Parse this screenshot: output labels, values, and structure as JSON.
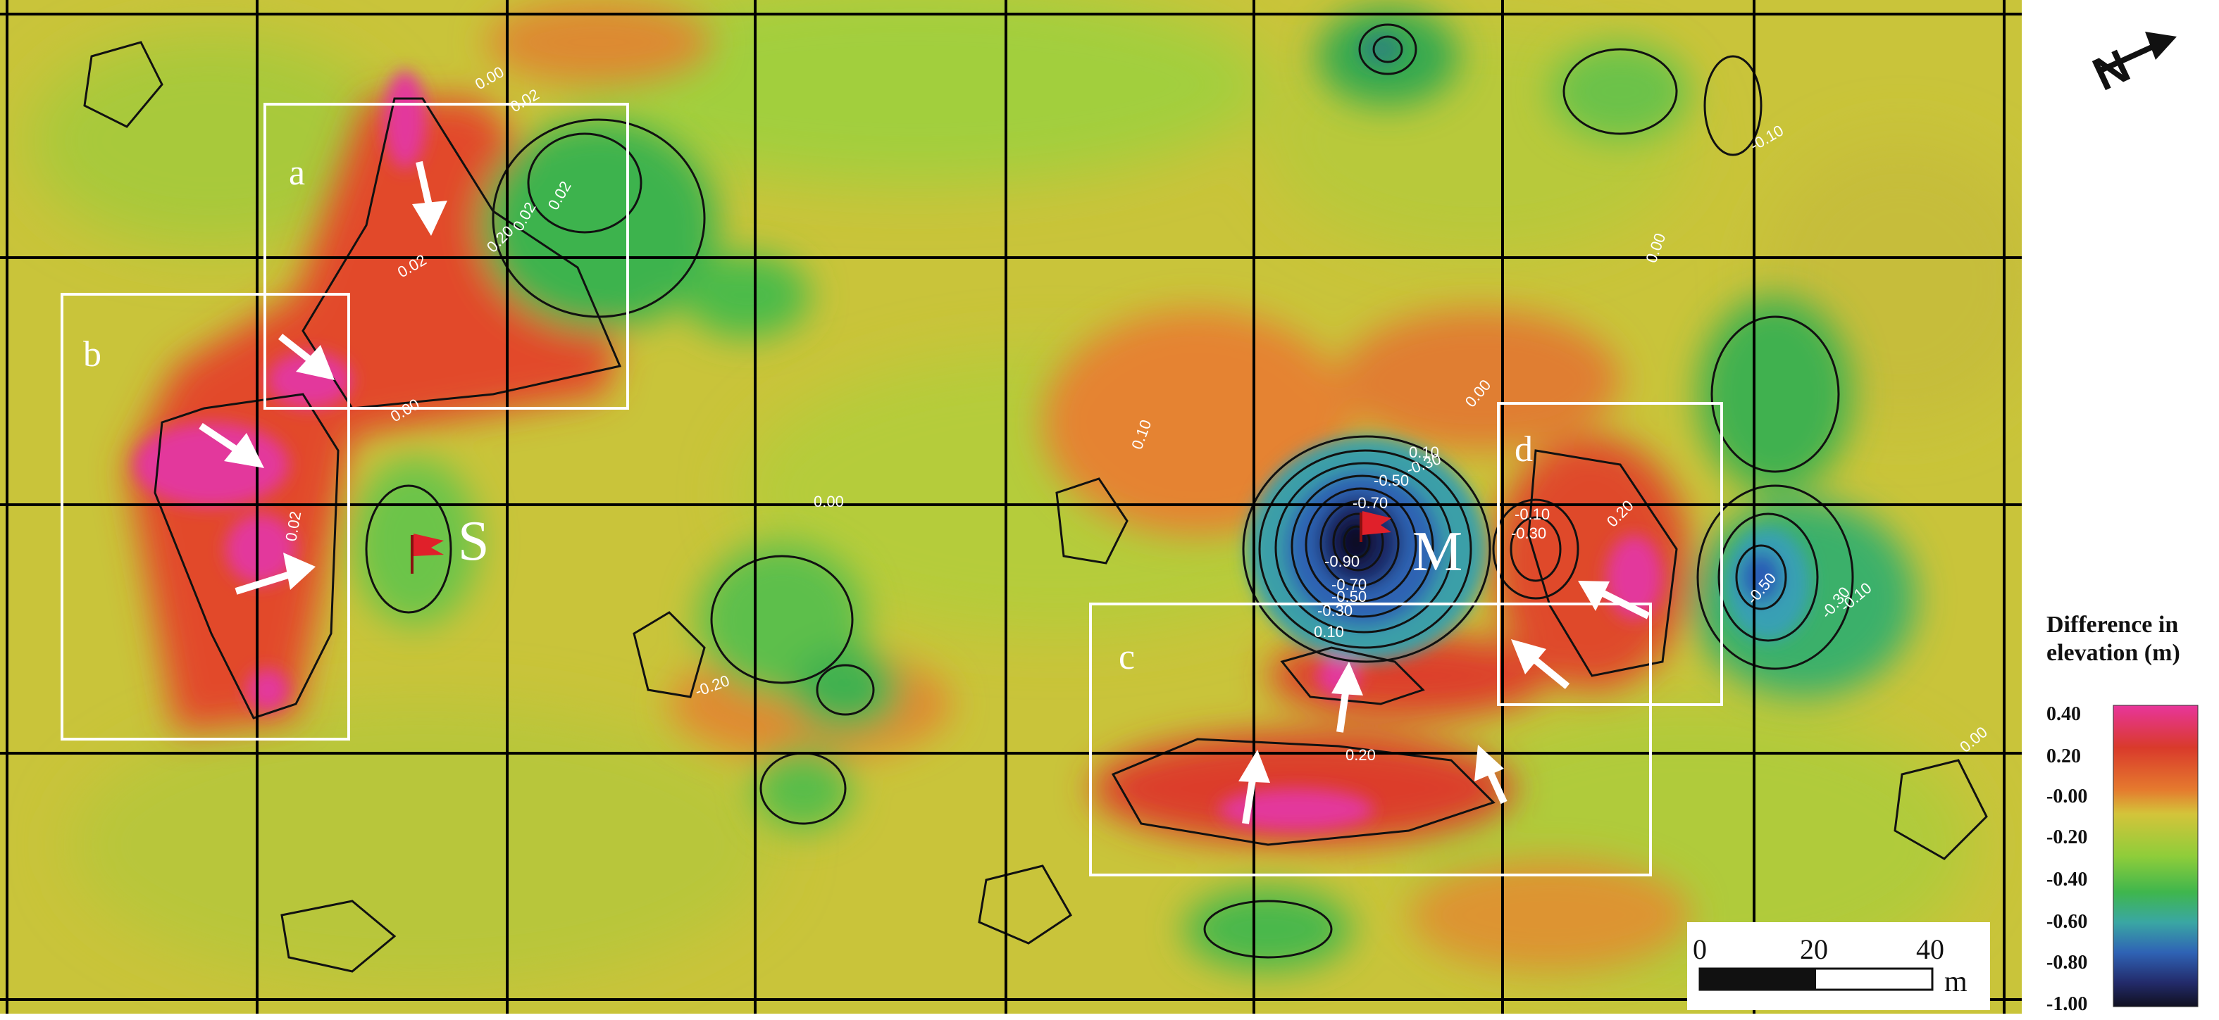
{
  "map": {
    "contour_labels": [
      "0.00",
      "0.02",
      "0.20",
      "0.10",
      "-0.10",
      "-0.30",
      "-0.50",
      "-0.70",
      "-0.90",
      "-0.20"
    ],
    "box_labels": [
      "a",
      "b",
      "c",
      "d"
    ],
    "sites": [
      {
        "label": "S",
        "marker": "red-flag-icon"
      },
      {
        "label": "M",
        "marker": "red-flag-icon"
      }
    ]
  },
  "north_arrow": {
    "label": "N",
    "icon": "north-arrow-icon"
  },
  "scale_bar": {
    "ticks": [
      "0",
      "20",
      "40"
    ],
    "unit": "m"
  },
  "legend": {
    "title_line1": "Difference in",
    "title_line2": "elevation (m)",
    "labels": [
      "0.40",
      "0.20",
      "-0.00",
      "-0.20",
      "-0.40",
      "-0.60",
      "-0.80",
      "-1.00"
    ],
    "colors": [
      "#e8359b",
      "#d93a2b",
      "#e57a2e",
      "#d4c43a",
      "#8fcd3a",
      "#3fb64d",
      "#3aa7a3",
      "#2f63b5",
      "#232b6b",
      "#101020"
    ]
  },
  "colors": {
    "frame": "#ffffff",
    "arrow": "#ffffff",
    "flag": "#e0202a"
  }
}
